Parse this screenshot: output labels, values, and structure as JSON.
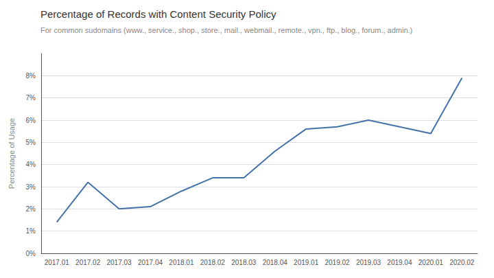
{
  "chart_data": {
    "type": "line",
    "title": "Percentage of Records with Content Security Policy",
    "subtitle": "For common sudomains (www., service., shop., store., mail., webmail., remote., vpn., ftp., blog., forum., admin.)",
    "ylabel": "Percentage of Usage",
    "categories": [
      "2017.01",
      "2017.02",
      "2017.03",
      "2017.04",
      "2018.01",
      "2018.02",
      "2018.03",
      "2018.04",
      "2019.01",
      "2019.02",
      "2019.03",
      "2019.04",
      "2020.01",
      "2020.02"
    ],
    "values": [
      0.014,
      0.032,
      0.02,
      0.021,
      0.028,
      0.034,
      0.034,
      0.046,
      0.056,
      0.057,
      0.06,
      0.057,
      0.054,
      0.079
    ],
    "color": "#4472a8",
    "ylim": [
      0,
      0.09
    ],
    "yticks": [
      {
        "value": 0,
        "label": "0%"
      },
      {
        "value": 0.01,
        "label": "1%"
      },
      {
        "value": 0.02,
        "label": "2%"
      },
      {
        "value": 0.03,
        "label": "3%"
      },
      {
        "value": 0.04,
        "label": "4%"
      },
      {
        "value": 0.05,
        "label": "5%"
      },
      {
        "value": 0.06,
        "label": "6%"
      },
      {
        "value": 0.07,
        "label": "7%"
      },
      {
        "value": 0.08,
        "label": "8%"
      }
    ],
    "grid": true
  }
}
